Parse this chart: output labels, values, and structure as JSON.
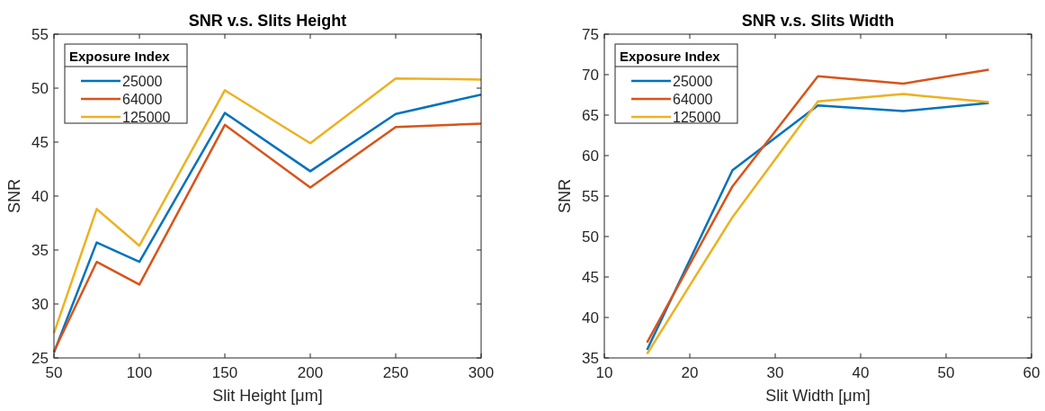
{
  "chart_data": [
    {
      "type": "line",
      "title": "SNR v.s. Slits Height",
      "xlabel": "Slit Height [μm]",
      "ylabel": "SNR",
      "legend_title": "Exposure Index",
      "legend": "top left",
      "grid": false,
      "line_style": "solid",
      "x": [
        50,
        75,
        100,
        150,
        200,
        250,
        300
      ],
      "xlim": [
        50,
        300
      ],
      "xticks": [
        50,
        100,
        150,
        200,
        250,
        300
      ],
      "ylim": [
        25,
        55
      ],
      "yticks": [
        25,
        30,
        35,
        40,
        45,
        50,
        55
      ],
      "series": [
        {
          "name": "25000",
          "color": "#0072bd",
          "values": [
            25.5,
            35.7,
            33.9,
            47.7,
            42.3,
            47.6,
            49.4
          ]
        },
        {
          "name": "64000",
          "color": "#d95319",
          "values": [
            25.6,
            33.9,
            31.8,
            46.6,
            40.8,
            46.4,
            46.7
          ]
        },
        {
          "name": "125000",
          "color": "#edb120",
          "values": [
            27.3,
            38.8,
            35.4,
            49.8,
            44.9,
            50.9,
            50.8
          ]
        }
      ]
    },
    {
      "type": "line",
      "title": "SNR v.s. Slits Width",
      "xlabel": "Slit Width [μm]",
      "ylabel": "SNR",
      "legend_title": "Exposure Index",
      "legend": "top left",
      "grid": false,
      "line_style": "solid",
      "x": [
        15,
        25,
        35,
        45,
        55
      ],
      "xlim": [
        10,
        60
      ],
      "xticks": [
        10,
        20,
        30,
        40,
        50,
        60
      ],
      "ylim": [
        35,
        75
      ],
      "yticks": [
        35,
        40,
        45,
        50,
        55,
        60,
        65,
        70,
        75
      ],
      "series": [
        {
          "name": "25000",
          "color": "#0072bd",
          "values": [
            36.0,
            58.2,
            66.2,
            65.5,
            66.5
          ]
        },
        {
          "name": "64000",
          "color": "#d95319",
          "values": [
            36.9,
            56.2,
            69.8,
            68.9,
            70.6
          ]
        },
        {
          "name": "125000",
          "color": "#edb120",
          "values": [
            35.5,
            52.4,
            66.7,
            67.6,
            66.6
          ]
        }
      ]
    }
  ]
}
